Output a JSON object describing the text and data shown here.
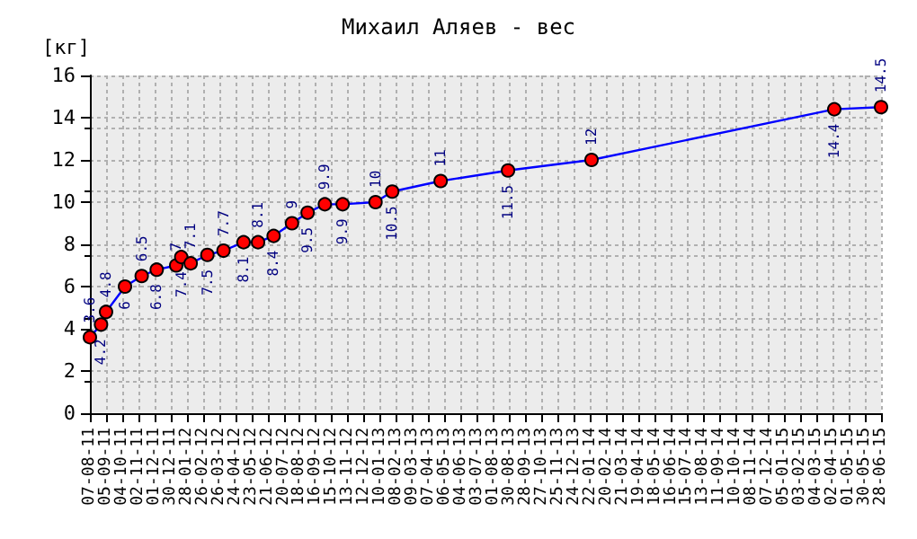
{
  "chart_data": {
    "type": "line",
    "title": "Михаил Аляев - вес",
    "ylabel": "[кг]",
    "series": [
      {
        "color": "#0000ff",
        "colors": [
          "#ff0000",
          "#ff0000",
          "#ff0000",
          "#ff0000",
          "#ff0000",
          "#ff0000",
          "#ff0000",
          "#ff0000",
          "#ff0000",
          "#ff0000",
          "#ff0000",
          "#ff0000",
          "#ff0000",
          "#ff0000",
          "#ff0000",
          "#ff0000",
          "#ff0000",
          "#ff0000",
          "#ff0000",
          "#ff0000",
          "#ff0000",
          "#ff0000",
          "#ff0000",
          "#ff0000",
          "#ff0000"
        ],
        "x": [
          "2011-08-07",
          "2011-08-27",
          "2011-09-05",
          "2011-10-09",
          "2011-11-08",
          "2011-12-05",
          "2012-01-09",
          "2012-01-18",
          "2012-02-04",
          "2012-03-05",
          "2012-04-03",
          "2012-05-09",
          "2012-06-04",
          "2012-07-02",
          "2012-08-04",
          "2012-09-01",
          "2012-10-02",
          "2012-11-03",
          "2013-01-01",
          "2013-01-31",
          "2013-04-28",
          "2013-08-27",
          "2014-01-24",
          "2015-04-05",
          "2015-06-28"
        ],
        "values": [
          3.6,
          4.2,
          4.8,
          6,
          6.5,
          6.8,
          7,
          7.4,
          7.1,
          7.5,
          7.7,
          8.1,
          8.1,
          8.4,
          9,
          9.5,
          9.9,
          9.9,
          10,
          10.5,
          11,
          11.5,
          12,
          14.4,
          14.5
        ]
      }
    ],
    "data_labels": true,
    "marker": "circle",
    "line_style": "solid",
    "grid": true,
    "ylim": [
      0,
      16
    ],
    "yticks": [
      0,
      2,
      4,
      6,
      8,
      10,
      12,
      14,
      16
    ],
    "xlim": [
      "2011-08-07",
      "2015-06-28"
    ],
    "xticks": [
      {
        "value": "2011-08-07",
        "label": "07-08-11"
      },
      {
        "value": "2011-09-05",
        "label": "05-09-11"
      },
      {
        "value": "2011-10-04",
        "label": "04-10-11"
      },
      {
        "value": "2011-11-02",
        "label": "02-11-11"
      },
      {
        "value": "2011-12-01",
        "label": "01-12-11"
      },
      {
        "value": "2011-12-30",
        "label": "30-12-11"
      },
      {
        "value": "2012-01-28",
        "label": "28-01-12"
      },
      {
        "value": "2012-02-26",
        "label": "26-02-12"
      },
      {
        "value": "2012-03-26",
        "label": "26-03-12"
      },
      {
        "value": "2012-04-24",
        "label": "24-04-12"
      },
      {
        "value": "2012-05-23",
        "label": "23-05-12"
      },
      {
        "value": "2012-06-21",
        "label": "21-06-12"
      },
      {
        "value": "2012-07-20",
        "label": "20-07-12"
      },
      {
        "value": "2012-08-18",
        "label": "18-08-12"
      },
      {
        "value": "2012-09-16",
        "label": "16-09-12"
      },
      {
        "value": "2012-10-15",
        "label": "15-10-12"
      },
      {
        "value": "2012-11-13",
        "label": "13-11-12"
      },
      {
        "value": "2012-12-12",
        "label": "12-12-12"
      },
      {
        "value": "2013-01-10",
        "label": "10-01-13"
      },
      {
        "value": "2013-02-08",
        "label": "08-02-13"
      },
      {
        "value": "2013-03-09",
        "label": "09-03-13"
      },
      {
        "value": "2013-04-07",
        "label": "07-04-13"
      },
      {
        "value": "2013-05-06",
        "label": "06-05-13"
      },
      {
        "value": "2013-06-04",
        "label": "04-06-13"
      },
      {
        "value": "2013-07-03",
        "label": "03-07-13"
      },
      {
        "value": "2013-08-01",
        "label": "01-08-13"
      },
      {
        "value": "2013-08-30",
        "label": "30-08-13"
      },
      {
        "value": "2013-09-28",
        "label": "28-09-13"
      },
      {
        "value": "2013-10-27",
        "label": "27-10-13"
      },
      {
        "value": "2013-11-25",
        "label": "25-11-13"
      },
      {
        "value": "2013-12-24",
        "label": "24-12-13"
      },
      {
        "value": "2014-01-22",
        "label": "22-01-14"
      },
      {
        "value": "2014-02-20",
        "label": "20-02-14"
      },
      {
        "value": "2014-03-21",
        "label": "21-03-14"
      },
      {
        "value": "2014-04-19",
        "label": "19-04-14"
      },
      {
        "value": "2014-05-18",
        "label": "18-05-14"
      },
      {
        "value": "2014-06-16",
        "label": "16-06-14"
      },
      {
        "value": "2014-07-15",
        "label": "15-07-14"
      },
      {
        "value": "2014-08-13",
        "label": "13-08-14"
      },
      {
        "value": "2014-09-11",
        "label": "11-09-14"
      },
      {
        "value": "2014-10-10",
        "label": "10-10-14"
      },
      {
        "value": "2014-11-08",
        "label": "08-11-14"
      },
      {
        "value": "2014-12-07",
        "label": "07-12-14"
      },
      {
        "value": "2015-01-05",
        "label": "05-01-15"
      },
      {
        "value": "2015-02-03",
        "label": "03-02-15"
      },
      {
        "value": "2015-03-04",
        "label": "04-03-15"
      },
      {
        "value": "2015-04-02",
        "label": "02-04-15"
      },
      {
        "value": "2015-05-01",
        "label": "01-05-15"
      },
      {
        "value": "2015-05-30",
        "label": "30-05-15"
      },
      {
        "value": "2015-06-28",
        "label": "28-06-15"
      }
    ]
  }
}
